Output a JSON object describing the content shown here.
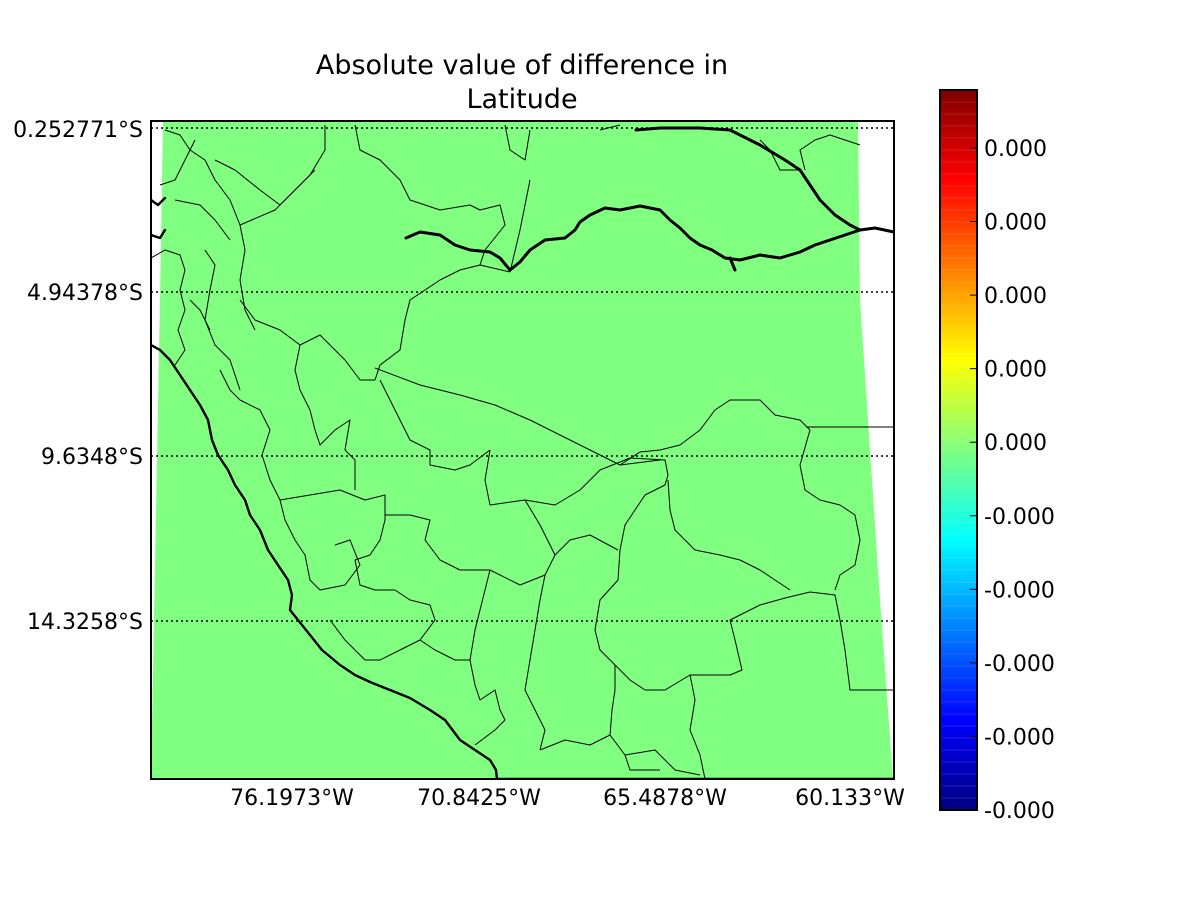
{
  "title_lines": [
    "Absolute value of difference in",
    "Latitude"
  ],
  "map": {
    "field_color": "#80ff80",
    "background": "#ffffff",
    "projection_note_hidden": false,
    "lat_labels": [
      {
        "label": "0.252771°S",
        "value": -0.252771
      },
      {
        "label": "4.94378°S",
        "value": -4.94378
      },
      {
        "label": "9.6348°S",
        "value": -9.6348
      },
      {
        "label": "14.3258°S",
        "value": -14.3258
      }
    ],
    "lon_labels": [
      {
        "label": "76.1973°W",
        "value": -76.1973
      },
      {
        "label": "70.8425°W",
        "value": -70.8425
      },
      {
        "label": "65.4878°W",
        "value": -65.4878
      },
      {
        "label": "60.133°W",
        "value": -60.133
      }
    ],
    "extent": {
      "lon_min": -80.0,
      "lon_max": -59.6,
      "lat_top": -0.252771,
      "lat_bottom": -18.9
    }
  },
  "colorbar": {
    "colormap": "jet",
    "tick_labels": [
      "0.000",
      "0.000",
      "0.000",
      "0.000",
      "0.000",
      "-0.000",
      "-0.000",
      "-0.000",
      "-0.000",
      "-0.000"
    ],
    "colors": [
      "#00007f",
      "#0000ff",
      "#007fff",
      "#00ffff",
      "#7fff7f",
      "#ffff00",
      "#ff7f00",
      "#ff0000",
      "#7f0000"
    ]
  }
}
